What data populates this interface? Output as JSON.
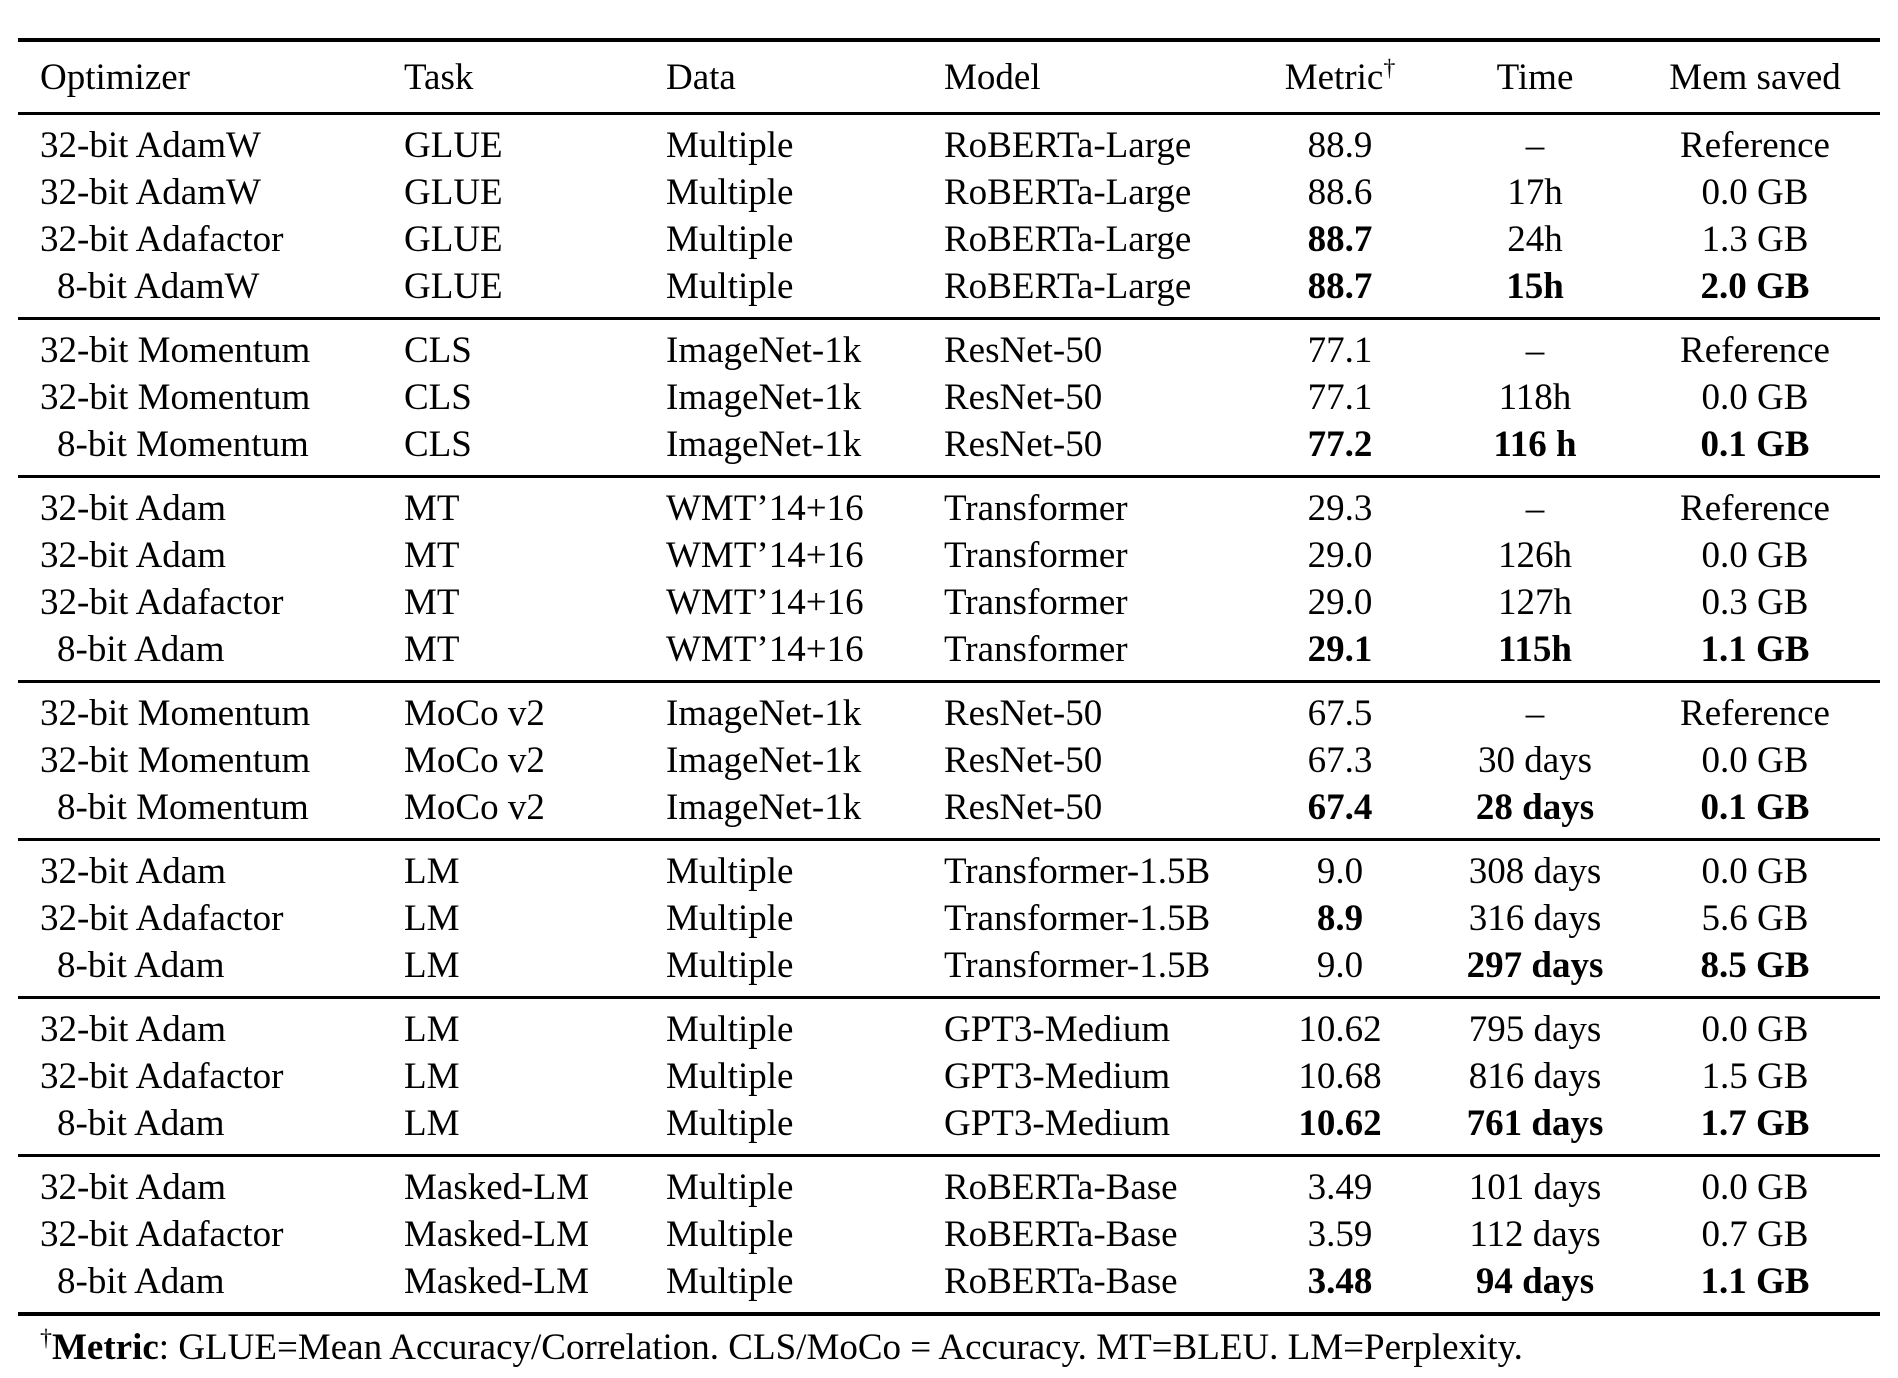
{
  "table": {
    "header": {
      "optimizer": "Optimizer",
      "task": "Task",
      "data": "Data",
      "model": "Model",
      "metric": "Metric",
      "metric_dagger": "†",
      "time": "Time",
      "mem_saved": "Mem saved"
    },
    "sections": [
      {
        "rows": [
          {
            "optimizer": "32-bit AdamW",
            "task": "GLUE",
            "data": "Multiple",
            "model": "RoBERTa-Large",
            "metric": "88.9",
            "time": "–",
            "mem": "Reference",
            "bold": []
          },
          {
            "optimizer": "32-bit AdamW",
            "task": "GLUE",
            "data": "Multiple",
            "model": "RoBERTa-Large",
            "metric": "88.6",
            "time": "17h",
            "mem": "0.0 GB",
            "bold": []
          },
          {
            "optimizer": "32-bit Adafactor",
            "task": "GLUE",
            "data": "Multiple",
            "model": "RoBERTa-Large",
            "metric": "88.7",
            "time": "24h",
            "mem": "1.3 GB",
            "bold": [
              "metric"
            ]
          },
          {
            "optimizer": "8-bit AdamW",
            "task": "GLUE",
            "data": "Multiple",
            "model": "RoBERTa-Large",
            "metric": "88.7",
            "time": "15h",
            "mem": "2.0 GB",
            "bold": [
              "metric",
              "time",
              "mem"
            ]
          }
        ]
      },
      {
        "rows": [
          {
            "optimizer": "32-bit Momentum",
            "task": "CLS",
            "data": "ImageNet-1k",
            "model": "ResNet-50",
            "metric": "77.1",
            "time": "–",
            "mem": "Reference",
            "bold": []
          },
          {
            "optimizer": "32-bit Momentum",
            "task": "CLS",
            "data": "ImageNet-1k",
            "model": "ResNet-50",
            "metric": "77.1",
            "time": "118h",
            "mem": "0.0 GB",
            "bold": []
          },
          {
            "optimizer": "8-bit Momentum",
            "task": "CLS",
            "data": "ImageNet-1k",
            "model": "ResNet-50",
            "metric": "77.2",
            "time": "116 h",
            "mem": "0.1 GB",
            "bold": [
              "metric",
              "time",
              "mem"
            ]
          }
        ]
      },
      {
        "rows": [
          {
            "optimizer": "32-bit Adam",
            "task": "MT",
            "data": "WMT’14+16",
            "model": "Transformer",
            "metric": "29.3",
            "time": "–",
            "mem": "Reference",
            "bold": []
          },
          {
            "optimizer": "32-bit Adam",
            "task": "MT",
            "data": "WMT’14+16",
            "model": "Transformer",
            "metric": "29.0",
            "time": "126h",
            "mem": "0.0 GB",
            "bold": []
          },
          {
            "optimizer": "32-bit Adafactor",
            "task": "MT",
            "data": "WMT’14+16",
            "model": "Transformer",
            "metric": "29.0",
            "time": "127h",
            "mem": "0.3 GB",
            "bold": []
          },
          {
            "optimizer": "8-bit Adam",
            "task": "MT",
            "data": "WMT’14+16",
            "model": "Transformer",
            "metric": "29.1",
            "time": "115h",
            "mem": "1.1 GB",
            "bold": [
              "metric",
              "time",
              "mem"
            ]
          }
        ]
      },
      {
        "rows": [
          {
            "optimizer": "32-bit Momentum",
            "task": "MoCo v2",
            "data": "ImageNet-1k",
            "model": "ResNet-50",
            "metric": "67.5",
            "time": "–",
            "mem": "Reference",
            "bold": []
          },
          {
            "optimizer": "32-bit Momentum",
            "task": "MoCo v2",
            "data": "ImageNet-1k",
            "model": "ResNet-50",
            "metric": "67.3",
            "time": "30 days",
            "mem": "0.0 GB",
            "bold": []
          },
          {
            "optimizer": "8-bit Momentum",
            "task": "MoCo v2",
            "data": "ImageNet-1k",
            "model": "ResNet-50",
            "metric": "67.4",
            "time": "28 days",
            "mem": "0.1 GB",
            "bold": [
              "metric",
              "time",
              "mem"
            ]
          }
        ]
      },
      {
        "rows": [
          {
            "optimizer": "32-bit Adam",
            "task": "LM",
            "data": "Multiple",
            "model": "Transformer-1.5B",
            "metric": "9.0",
            "time": "308 days",
            "mem": "0.0 GB",
            "bold": []
          },
          {
            "optimizer": "32-bit Adafactor",
            "task": "LM",
            "data": "Multiple",
            "model": "Transformer-1.5B",
            "metric": "8.9",
            "time": "316 days",
            "mem": "5.6 GB",
            "bold": [
              "metric"
            ]
          },
          {
            "optimizer": "8-bit Adam",
            "task": "LM",
            "data": "Multiple",
            "model": "Transformer-1.5B",
            "metric": "9.0",
            "time": "297 days",
            "mem": "8.5 GB",
            "bold": [
              "time",
              "mem"
            ]
          }
        ]
      },
      {
        "rows": [
          {
            "optimizer": "32-bit Adam",
            "task": "LM",
            "data": "Multiple",
            "model": "GPT3-Medium",
            "metric": "10.62",
            "time": "795 days",
            "mem": "0.0 GB",
            "bold": []
          },
          {
            "optimizer": "32-bit Adafactor",
            "task": "LM",
            "data": "Multiple",
            "model": "GPT3-Medium",
            "metric": "10.68",
            "time": "816 days",
            "mem": "1.5 GB",
            "bold": []
          },
          {
            "optimizer": "8-bit Adam",
            "task": "LM",
            "data": "Multiple",
            "model": "GPT3-Medium",
            "metric": "10.62",
            "time": "761 days",
            "mem": "1.7 GB",
            "bold": [
              "metric",
              "time",
              "mem"
            ]
          }
        ]
      },
      {
        "rows": [
          {
            "optimizer": "32-bit Adam",
            "task": "Masked-LM",
            "data": "Multiple",
            "model": "RoBERTa-Base",
            "metric": "3.49",
            "time": "101 days",
            "mem": "0.0 GB",
            "bold": []
          },
          {
            "optimizer": "32-bit Adafactor",
            "task": "Masked-LM",
            "data": "Multiple",
            "model": "RoBERTa-Base",
            "metric": "3.59",
            "time": "112 days",
            "mem": "0.7 GB",
            "bold": []
          },
          {
            "optimizer": "8-bit Adam",
            "task": "Masked-LM",
            "data": "Multiple",
            "model": "RoBERTa-Base",
            "metric": "3.48",
            "time": "94 days",
            "mem": "1.1 GB",
            "bold": [
              "metric",
              "time",
              "mem"
            ]
          }
        ]
      }
    ]
  },
  "footnote": {
    "dagger": "†",
    "label": "Metric",
    "text": ": GLUE=Mean Accuracy/Correlation. CLS/MoCo = Accuracy. MT=BLEU. LM=Perplexity."
  }
}
